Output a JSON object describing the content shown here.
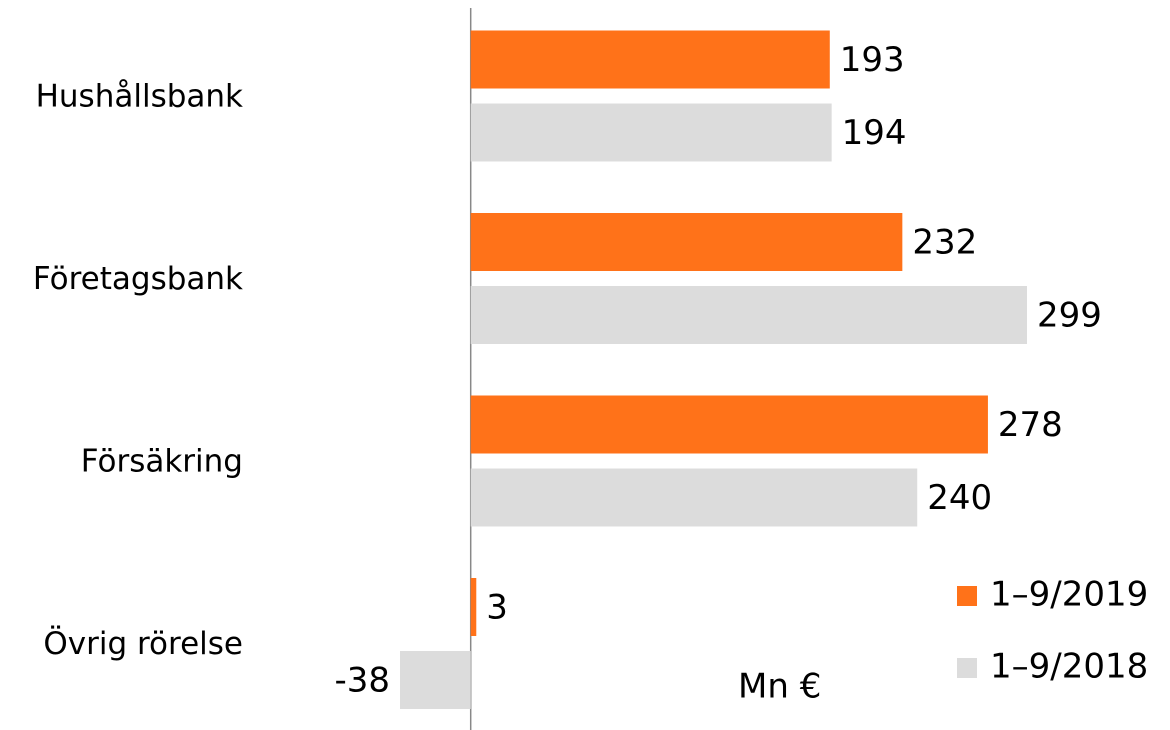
{
  "chart_data": {
    "type": "hbar",
    "categories": [
      "Hushållsbank",
      "Företagsbank",
      "Försäkring",
      "Övrig rörelse"
    ],
    "series": [
      {
        "name": "1–9/2019",
        "color": "#ff7219",
        "values": [
          193,
          232,
          278,
          3
        ]
      },
      {
        "name": "1–9/2018",
        "color": "#dcdcdc",
        "values": [
          194,
          299,
          240,
          -38
        ]
      }
    ],
    "unit_label": "Mn €",
    "legend": "lower right"
  }
}
